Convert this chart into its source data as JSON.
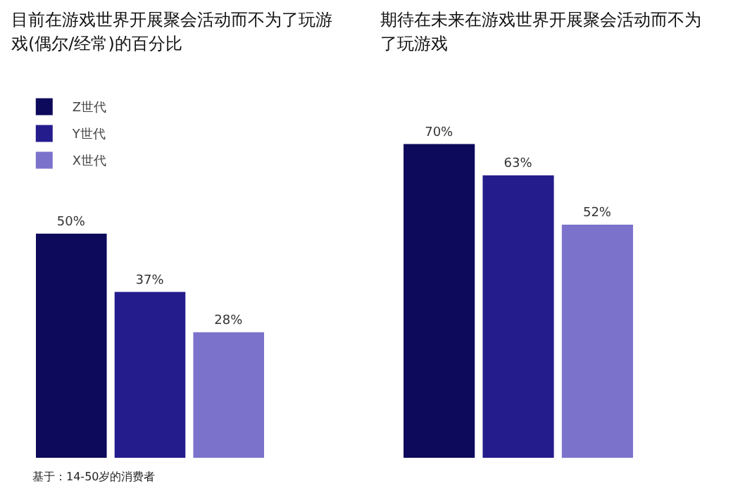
{
  "chart_data": [
    {
      "type": "bar",
      "title": "目前在游戏世界开展聚会活动而不为了玩游戏(偶尔/经常)的百分比",
      "categories": [
        null
      ],
      "legend": "top left",
      "grid": false,
      "tick_labels": false,
      "annotations": [
        "基于：14-50岁的消费者"
      ],
      "series": [
        {
          "name": "Z世代",
          "color": "#0d0a5b",
          "values": [
            50
          ],
          "value_labels": [
            "50%"
          ]
        },
        {
          "name": "Y世代",
          "color": "#241c8c",
          "values": [
            37
          ],
          "value_labels": [
            "37%"
          ]
        },
        {
          "name": "X世代",
          "color": "#7b72cc",
          "values": [
            28
          ],
          "value_labels": [
            "28%"
          ]
        }
      ]
    },
    {
      "type": "bar",
      "title": "期待在未来在游戏世界开展聚会活动而不为了玩游戏",
      "categories": [
        null
      ],
      "legend": false,
      "grid": false,
      "tick_labels": false,
      "series": [
        {
          "color": "#0d0a5b",
          "values": [
            70
          ],
          "value_labels": [
            "70%"
          ]
        },
        {
          "color": "#241c8c",
          "values": [
            63
          ],
          "value_labels": [
            "63%"
          ]
        },
        {
          "color": "#7b72cc",
          "values": [
            52
          ],
          "value_labels": [
            "52%"
          ]
        }
      ]
    }
  ]
}
